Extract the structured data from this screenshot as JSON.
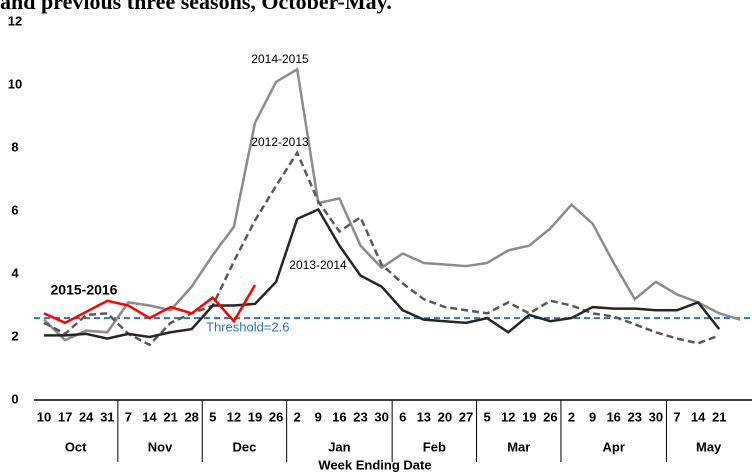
{
  "chart_data": {
    "type": "line",
    "title": "and previous three seasons, October-May.",
    "x_label": "Week Ending Date",
    "categories": [
      "10",
      "17",
      "24",
      "31",
      "7",
      "14",
      "21",
      "28",
      "5",
      "12",
      "19",
      "26",
      "2",
      "9",
      "16",
      "23",
      "30",
      "6",
      "13",
      "20",
      "27",
      "5",
      "12",
      "19",
      "26",
      "2",
      "9",
      "16",
      "23",
      "30",
      "7",
      "14",
      "21",
      null
    ],
    "month_groups": [
      {
        "label": "Oct",
        "weeks": 4
      },
      {
        "label": "Nov",
        "weeks": 4
      },
      {
        "label": "Dec",
        "weeks": 4
      },
      {
        "label": "Jan",
        "weeks": 5
      },
      {
        "label": "Feb",
        "weeks": 4
      },
      {
        "label": "Mar",
        "weeks": 4
      },
      {
        "label": "Apr",
        "weeks": 5
      },
      {
        "label": "May",
        "weeks": 4
      }
    ],
    "ylim": [
      0,
      12
    ],
    "yticks": [
      0,
      2,
      4,
      6,
      8,
      10,
      12
    ],
    "grid": false,
    "threshold": {
      "value": 2.6,
      "label": "Threshold=2.6",
      "color": "#2e75b6"
    },
    "series": [
      {
        "name": "2014-2015",
        "color": "#8c8c8c",
        "dash": false,
        "values": [
          2.55,
          1.9,
          2.2,
          2.15,
          3.1,
          3.0,
          2.85,
          3.6,
          4.6,
          5.5,
          8.8,
          10.1,
          10.5,
          6.25,
          6.4,
          4.9,
          4.2,
          4.65,
          4.35,
          4.3,
          4.25,
          4.35,
          4.75,
          4.9,
          5.45,
          6.2,
          5.6,
          4.35,
          3.2,
          3.75,
          3.35,
          3.1,
          2.75,
          2.55
        ]
      },
      {
        "name": "2012-2013",
        "color": "#595959",
        "dash": true,
        "values": [
          2.45,
          2.1,
          2.7,
          2.75,
          2.1,
          1.75,
          2.45,
          2.75,
          3.0,
          4.4,
          5.7,
          6.8,
          7.85,
          6.3,
          5.35,
          5.8,
          4.3,
          3.7,
          3.2,
          2.95,
          2.85,
          2.75,
          3.1,
          2.75,
          3.15,
          3.0,
          2.75,
          2.65,
          2.4,
          2.15,
          1.95,
          1.8,
          2.05,
          null
        ]
      },
      {
        "name": "2013-2014",
        "color": "#262626",
        "dash": false,
        "values": [
          2.05,
          2.05,
          2.1,
          1.95,
          2.1,
          2.0,
          2.15,
          2.25,
          3.0,
          3.0,
          3.05,
          3.75,
          5.75,
          6.05,
          4.9,
          3.95,
          3.6,
          2.85,
          2.55,
          2.5,
          2.45,
          2.6,
          2.15,
          2.7,
          2.5,
          2.6,
          2.95,
          2.9,
          2.9,
          2.85,
          2.85,
          3.1,
          2.25,
          null
        ]
      },
      {
        "name": "2015-2016",
        "color": "#ff0000",
        "dash": false,
        "bold_label": true,
        "values": [
          2.75,
          2.45,
          2.8,
          3.15,
          3.0,
          2.6,
          2.95,
          2.75,
          3.25,
          2.5,
          3.65,
          null,
          null,
          null,
          null,
          null,
          null,
          null,
          null,
          null,
          null,
          null,
          null,
          null,
          null,
          null,
          null,
          null,
          null,
          null,
          null,
          null,
          null,
          null
        ]
      }
    ]
  }
}
